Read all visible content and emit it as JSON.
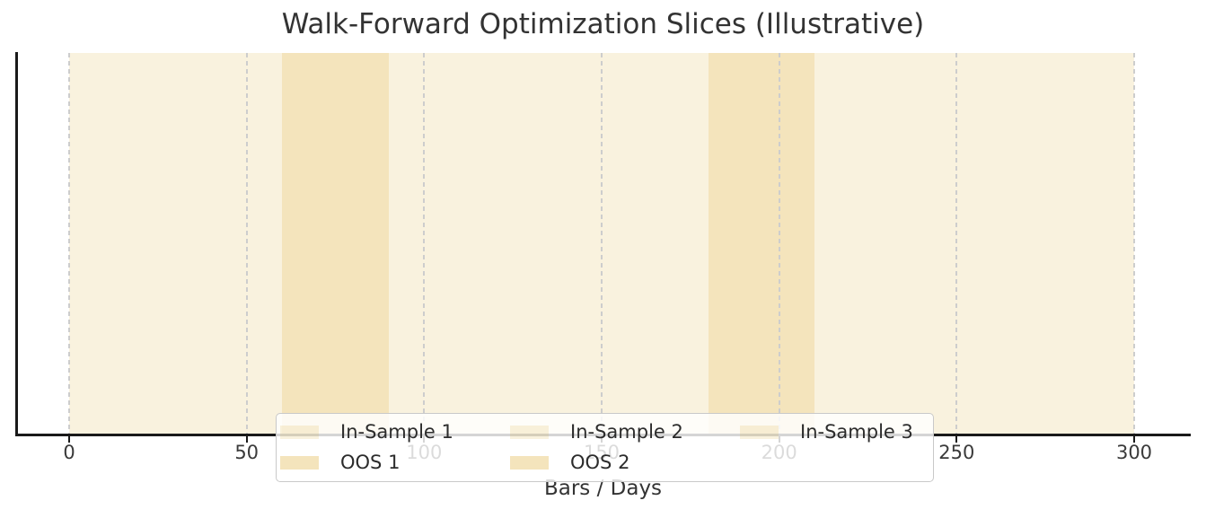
{
  "figure": {
    "title": "Walk-Forward Optimization Slices (Illustrative)",
    "background_color": "#ffffff",
    "title_color": "#333333"
  },
  "chart_data": {
    "type": "area",
    "subtype": "walk-forward-slices",
    "title": "Walk-Forward Optimization Slices (Illustrative)",
    "xlabel": "Bars / Days",
    "ylabel": "",
    "xlim": [
      -15,
      315
    ],
    "x_ticks": [
      0,
      50,
      100,
      150,
      200,
      250,
      300
    ],
    "grid": "vertical-dashed",
    "legend_position": "lower center",
    "slices": [
      {
        "label": "In-Sample 1",
        "start": 0,
        "end": 60,
        "kind": "in_sample"
      },
      {
        "label": "OOS 1",
        "start": 60,
        "end": 90,
        "kind": "oos"
      },
      {
        "label": "In-Sample 2",
        "start": 90,
        "end": 180,
        "kind": "in_sample"
      },
      {
        "label": "OOS 2",
        "start": 180,
        "end": 210,
        "kind": "oos"
      },
      {
        "label": "In-Sample 3",
        "start": 210,
        "end": 300,
        "kind": "in_sample"
      }
    ],
    "colors": {
      "in_sample": "rgba(218,165,32,0.15)",
      "oos": "rgba(218,165,32,0.30)",
      "gridline": "#cdcdcd",
      "axis": "#1a1a1a",
      "tick_label": "#3a3a3a"
    },
    "legend": {
      "entries": [
        {
          "label": "In-Sample 1",
          "kind": "in_sample"
        },
        {
          "label": "OOS 1",
          "kind": "oos"
        },
        {
          "label": "In-Sample 2",
          "kind": "in_sample"
        },
        {
          "label": "OOS 2",
          "kind": "oos"
        },
        {
          "label": "In-Sample 3",
          "kind": "in_sample"
        }
      ]
    }
  }
}
